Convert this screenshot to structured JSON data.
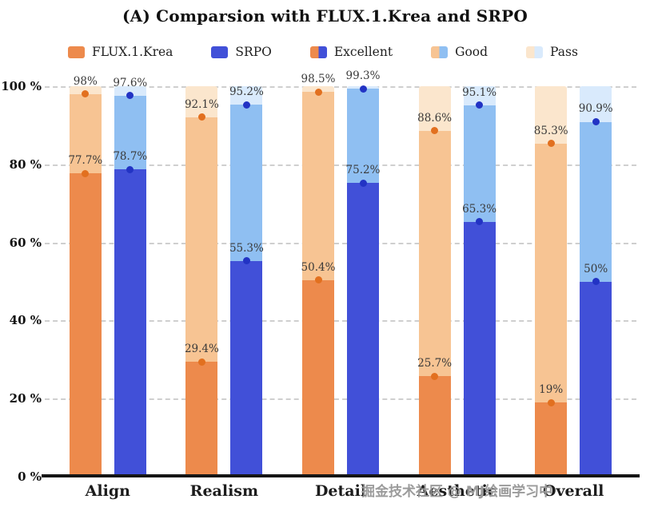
{
  "title": "(A)  Comparsion with FLUX.1.Krea and SRPO",
  "watermark": "掘金技术社区 @ MJ绘画学习中",
  "colors": {
    "orange": {
      "excellent": "#ed8a4c",
      "good": "#f7c493",
      "pass": "#fbe6cd",
      "dot": "#e2701f"
    },
    "blue": {
      "excellent": "#4150d8",
      "good": "#8fbff2",
      "pass": "#d9eafc",
      "dot": "#2233c4"
    },
    "grid": "#cfcfcf",
    "axis": "#151515"
  },
  "legend": [
    {
      "label": "FLUX.1.Krea",
      "swatch": [
        "orange.excellent"
      ]
    },
    {
      "label": "SRPO",
      "swatch": [
        "blue.excellent"
      ]
    },
    {
      "label": "Excellent",
      "swatch": [
        "orange.excellent",
        "blue.excellent"
      ]
    },
    {
      "label": "Good",
      "swatch": [
        "orange.good",
        "blue.good"
      ]
    },
    {
      "label": "Pass",
      "swatch": [
        "orange.pass",
        "blue.pass"
      ]
    }
  ],
  "chart_data": {
    "type": "bar",
    "stacked": true,
    "title": "(A) Comparsion with FLUX.1.Krea and SRPO",
    "categories": [
      "Align",
      "Realism",
      "Detail",
      "Aesthetic",
      "Overall"
    ],
    "ylim": [
      0,
      100
    ],
    "ytick_values": [
      0,
      20,
      40,
      60,
      80,
      100
    ],
    "ytick_labels": [
      "0 %",
      "20 %",
      "40 %",
      "60 %",
      "80 %",
      "100 %"
    ],
    "grid": "dashed-horizontal",
    "legend_position": "top",
    "series": [
      {
        "name": "FLUX.1.Krea",
        "palette": "orange",
        "segments": {
          "excellent": {
            "values": [
              77.7,
              29.4,
              50.4,
              25.7,
              19
            ],
            "labels": [
              "77.7%",
              "29.4%",
              "50.4%",
              "25.7%",
              "19%"
            ]
          },
          "good": {
            "values": [
              98,
              92.1,
              98.5,
              88.6,
              85.3
            ],
            "labels": [
              "98%",
              "92.1%",
              "98.5%",
              "88.6%",
              "85.3%"
            ]
          },
          "pass": {
            "values": [
              100,
              100,
              100,
              100,
              100
            ],
            "labels": [
              "",
              "",
              "",
              "",
              ""
            ]
          }
        }
      },
      {
        "name": "SRPO",
        "palette": "blue",
        "segments": {
          "excellent": {
            "values": [
              78.7,
              55.3,
              75.2,
              65.3,
              50
            ],
            "labels": [
              "78.7%",
              "55.3%",
              "75.2%",
              "65.3%",
              "50%"
            ]
          },
          "good": {
            "values": [
              97.6,
              95.2,
              99.3,
              95.1,
              90.9
            ],
            "labels": [
              "97.6%",
              "95.2%",
              "99.3%",
              "95.1%",
              "90.9%"
            ]
          },
          "pass": {
            "values": [
              100,
              100,
              100,
              100,
              100
            ],
            "labels": [
              "",
              "",
              "",
              "",
              ""
            ]
          }
        }
      }
    ]
  }
}
